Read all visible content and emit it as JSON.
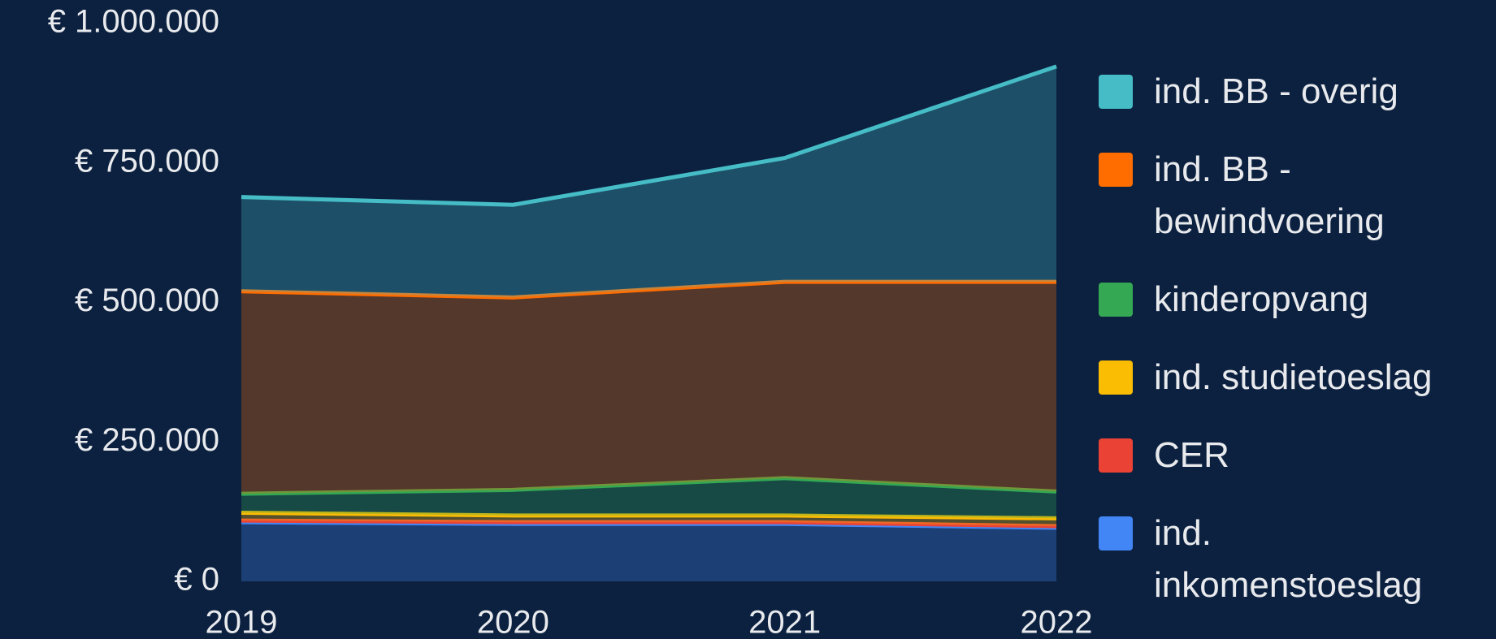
{
  "chart_data": {
    "type": "stacked_area",
    "categories": [
      "2019",
      "2020",
      "2021",
      "2022"
    ],
    "series": [
      {
        "name": "ind. inkomenstoeslag",
        "color": "#4285f4",
        "values": [
          106000,
          103000,
          103000,
          96000
        ]
      },
      {
        "name": "CER",
        "color": "#ea4335",
        "values": [
          3000,
          3000,
          3000,
          3000
        ]
      },
      {
        "name": "ind. studietoeslag",
        "color": "#fbbc04",
        "values": [
          14000,
          12000,
          12000,
          14000
        ]
      },
      {
        "name": "kinderopvang",
        "color": "#34a853",
        "values": [
          34000,
          46000,
          67000,
          48000
        ]
      },
      {
        "name": "ind. BB - bewindvoering",
        "color": "#ff6d00",
        "values": [
          363000,
          345000,
          352000,
          376000
        ]
      },
      {
        "name": "ind. BB - overig",
        "color": "#46bdc6",
        "values": [
          169000,
          166000,
          222000,
          386000
        ]
      }
    ],
    "ylim": [
      0,
      1000000
    ],
    "yticks": [
      {
        "value": 0,
        "label": "€ 0"
      },
      {
        "value": 250000,
        "label": "€ 250.000"
      },
      {
        "value": 500000,
        "label": "€ 500.000"
      },
      {
        "value": 750000,
        "label": "€ 750.000"
      },
      {
        "value": 1000000,
        "label": "€ 1.000.000"
      }
    ],
    "legend": "right"
  }
}
